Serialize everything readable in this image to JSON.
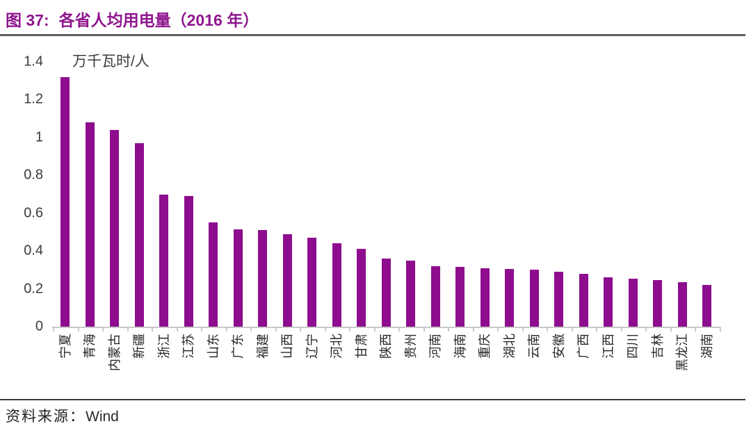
{
  "header": {
    "figure_label": "图 37:",
    "title": "各省人均用电量（2016 年）"
  },
  "source": {
    "label": "资料来源：",
    "value": "Wind"
  },
  "colors": {
    "bar": "#8E0D8E",
    "title_text": "#8E168E",
    "axis_line": "#C9C9C9",
    "divider_dark": "#3a3a3a"
  },
  "chart_data": {
    "type": "bar",
    "title": "图 37: 各省人均用电量（2016 年）",
    "unit_label": "万千瓦时/人",
    "xlabel": "",
    "ylabel": "万千瓦时/人",
    "ylim": [
      0,
      1.4
    ],
    "yticks": [
      0,
      0.2,
      0.4,
      0.6,
      0.8,
      1,
      1.2,
      1.4
    ],
    "ytick_labels": [
      "0",
      "0.2",
      "0.4",
      "0.6",
      "0.8",
      "1",
      "1.2",
      "1.4"
    ],
    "grid": false,
    "legend": false,
    "bar_color": "#8E0D8E",
    "categories": [
      "宁夏",
      "青海",
      "内蒙古",
      "新疆",
      "浙江",
      "江苏",
      "山东",
      "广东",
      "福建",
      "山西",
      "辽宁",
      "河北",
      "甘肃",
      "陕西",
      "贵州",
      "河南",
      "海南",
      "重庆",
      "湖北",
      "云南",
      "安徽",
      "广西",
      "江西",
      "四川",
      "吉林",
      "黑龙江",
      "湖南"
    ],
    "values": [
      1.32,
      1.08,
      1.04,
      0.97,
      0.7,
      0.69,
      0.55,
      0.515,
      0.51,
      0.49,
      0.47,
      0.44,
      0.41,
      0.36,
      0.35,
      0.32,
      0.315,
      0.31,
      0.305,
      0.3,
      0.29,
      0.28,
      0.26,
      0.255,
      0.245,
      0.235,
      0.22
    ]
  }
}
